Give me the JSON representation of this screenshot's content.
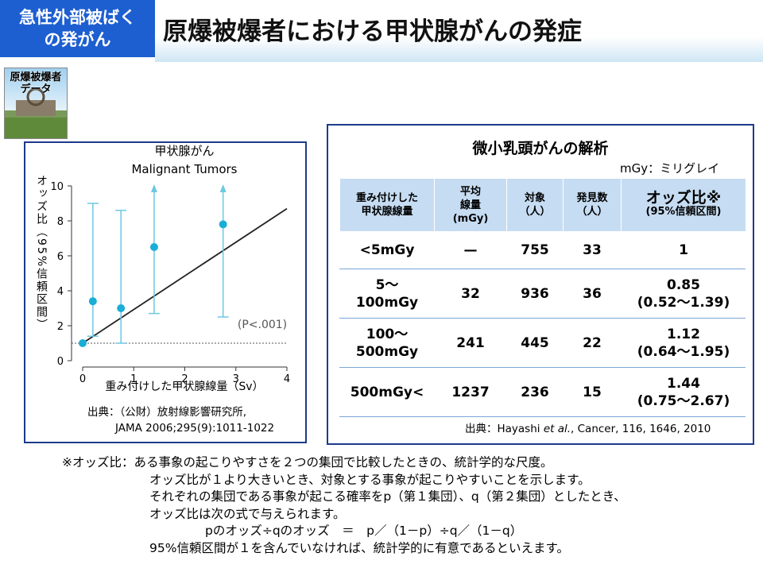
{
  "header": {
    "section": [
      "急性外部被ばく",
      "の発がん"
    ],
    "title": "原爆被爆者における甲状腺がんの発症",
    "badge": [
      "原爆被爆者",
      "データ"
    ]
  },
  "chart_data": {
    "type": "scatter",
    "title": "甲状腺がん",
    "subtitle": "Malignant Tumors",
    "x_label": "重み付けした甲状腺線量（Sv）",
    "y_label": "オッズ比（95%信頼区間）",
    "x": [
      0,
      0.2,
      0.75,
      1.4,
      2.75
    ],
    "y": [
      1,
      3.4,
      3.0,
      6.5,
      7.8
    ],
    "lower": [
      null,
      1.4,
      1.0,
      2.7,
      2.5
    ],
    "upper": [
      null,
      9.0,
      8.6,
      null,
      null
    ],
    "open_upper": [
      false,
      false,
      false,
      true,
      true
    ],
    "fit_line": {
      "x": [
        0,
        4
      ],
      "y": [
        1,
        8.7
      ]
    },
    "reference_line": 1,
    "annotation": "(P<.001)",
    "xlim": [
      0,
      4
    ],
    "ylim": [
      0,
      10
    ],
    "xticks": [
      0,
      1,
      2,
      3,
      4
    ],
    "yticks": [
      0,
      2,
      4,
      6,
      8,
      10
    ],
    "color": "#1aaed6",
    "error_color": "#6cc9e2",
    "line_color": "#222222",
    "source": [
      "出典：（公財）放射線影響研究所,",
      "JAMA 2006;295(9):1011-1022"
    ]
  },
  "table": {
    "title": "微小乳頭がんの解析",
    "unit_note": "mGy：ミリグレイ",
    "header": [
      [
        "重み付けした",
        "甲状腺線量"
      ],
      [
        "平均",
        "線量",
        "(mGy)"
      ],
      [
        "対象",
        "（人）"
      ],
      [
        "発見数",
        "（人）"
      ],
      [
        "オッズ比※",
        "(95%信頼区間)"
      ]
    ],
    "rows": [
      [
        [
          "<5mGy"
        ],
        [
          "—"
        ],
        [
          "755"
        ],
        [
          "33"
        ],
        [
          "1"
        ]
      ],
      [
        [
          "5〜",
          "100mGy"
        ],
        [
          "32"
        ],
        [
          "936"
        ],
        [
          "36"
        ],
        [
          "0.85",
          "(0.52〜1.39)"
        ]
      ],
      [
        [
          "100〜",
          "500mGy"
        ],
        [
          "241"
        ],
        [
          "445"
        ],
        [
          "22"
        ],
        [
          "1.12",
          "(0.64〜1.95)"
        ]
      ],
      [
        [
          "500mGy<"
        ],
        [
          "1237"
        ],
        [
          "236"
        ],
        [
          "15"
        ],
        [
          "1.44",
          "(0.75〜2.67)"
        ]
      ]
    ],
    "source": [
      "出典：Hayashi ",
      "et al.",
      ",  Cancer, 116, 1646, 2010"
    ]
  },
  "notes": {
    "label": "※オッズ比：",
    "lines": [
      "ある事象の起こりやすさを２つの集団で比較したときの、統計学的な尺度。",
      "オッズ比が１より大きいとき、対象とする事象が起こりやすいことを示します。",
      "それぞれの集団である事象が起こる確率をp（第１集団）、q（第２集団）としたとき、",
      "オッズ比は次の式で与えられます。",
      "pのオッズ÷qのオッズ　＝　p／（1－p）÷q／（1－q）",
      "95%信頼区間が１を含んでいなければ、統計学的に有意であるといえます。"
    ]
  }
}
